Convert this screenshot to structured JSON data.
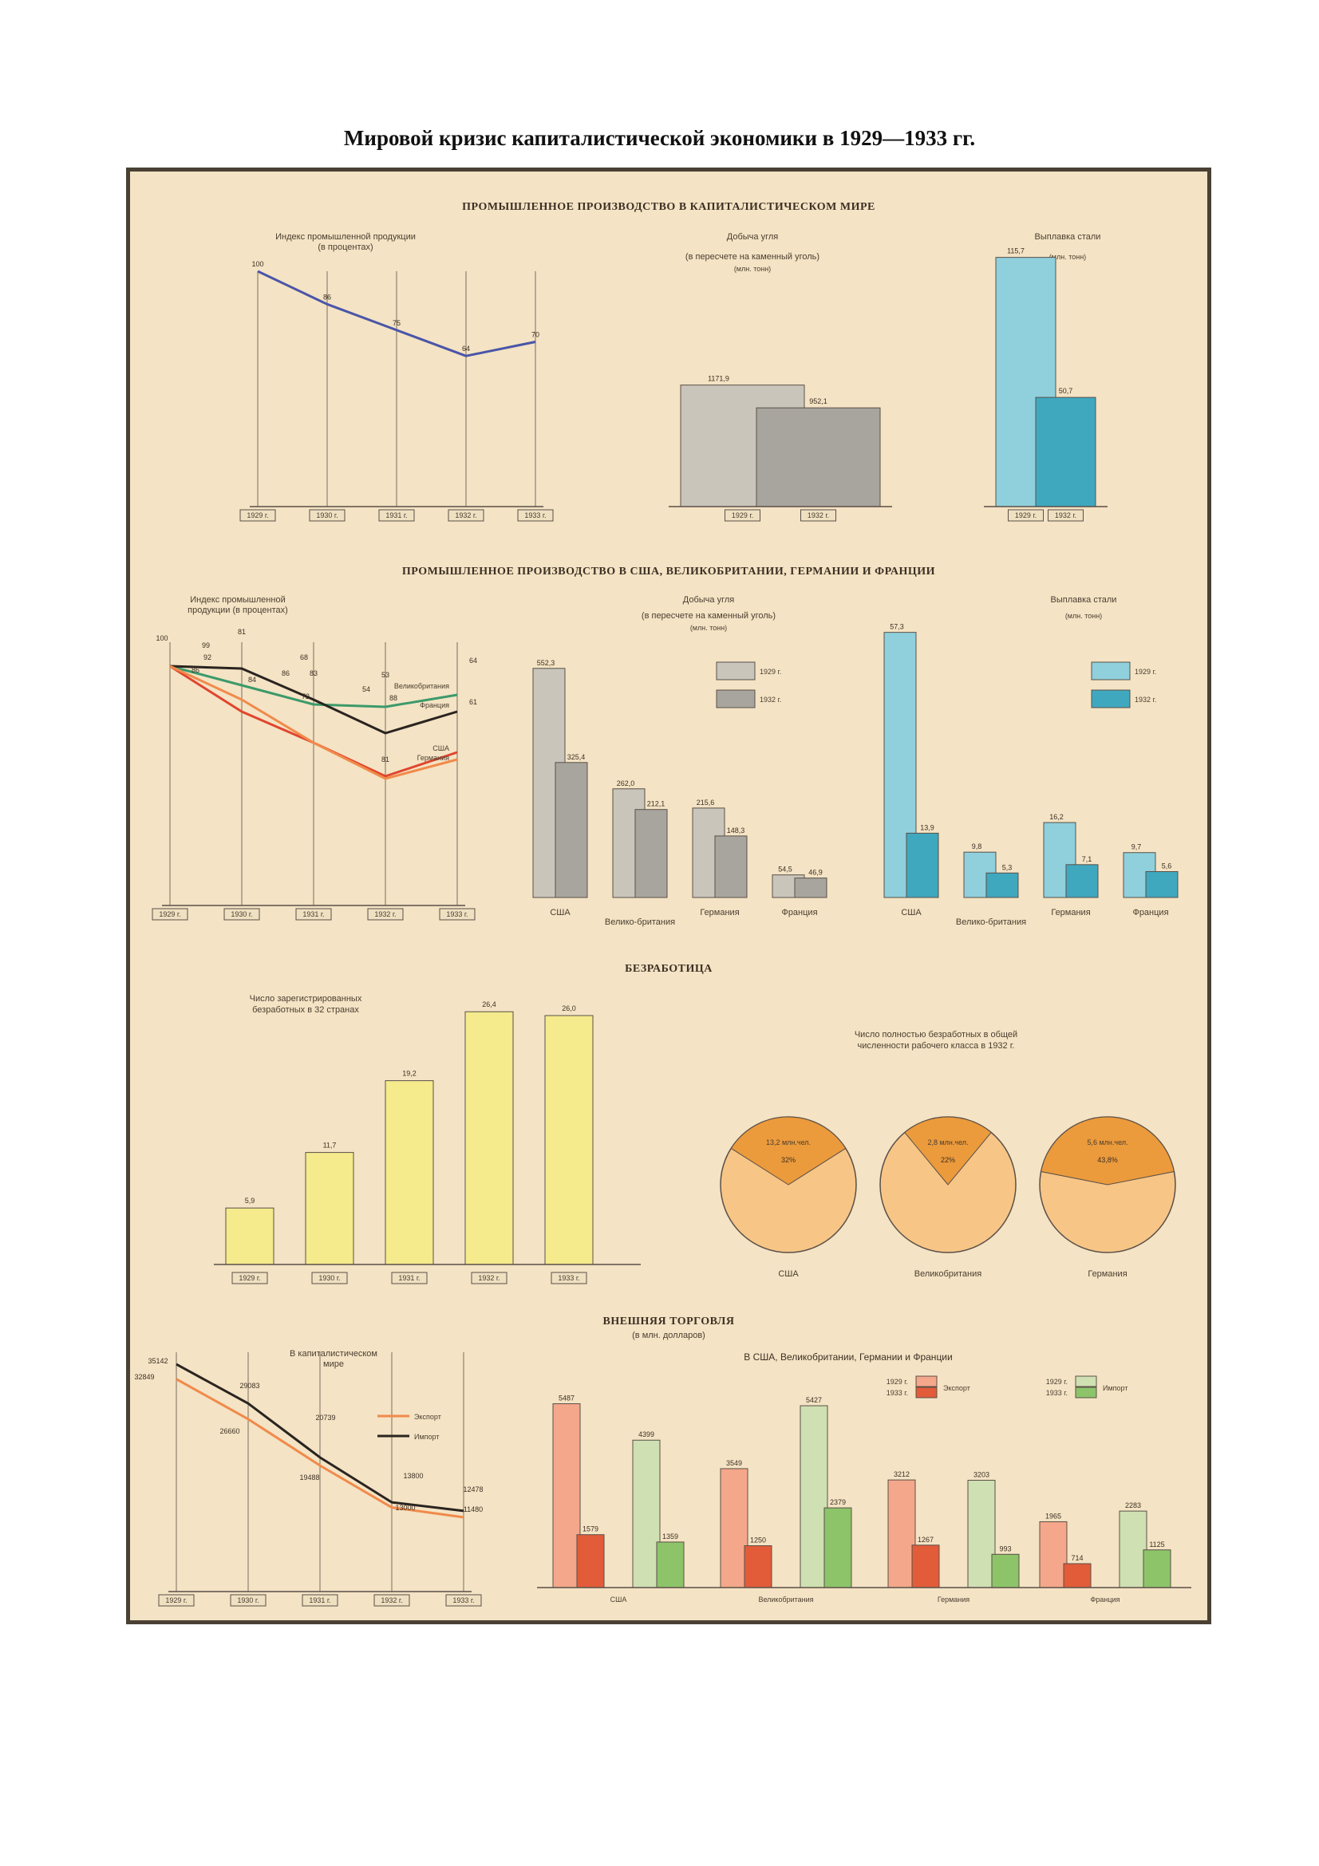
{
  "document": {
    "title": "Мировой кризис капиталистической экономики в 1929—1933 гг."
  },
  "sections": {
    "world": "ПРОМЫШЛЕННОЕ ПРОИЗВОДСТВО В КАПИТАЛИСТИЧЕСКОМ МИРЕ",
    "countries": "ПРОМЫШЛЕННОЕ ПРОИЗВОДСТВО В США, ВЕЛИКОБРИТАНИИ, ГЕРМАНИИ И ФРАНЦИИ",
    "unemployment": "БЕЗРАБОТИЦА",
    "trade": "ВНЕШНЯЯ ТОРГОВЛЯ",
    "trade_unit": "(в млн. долларов)"
  },
  "colors": {
    "paper": "#f4e3c4",
    "frame": "#4a4034",
    "blue_line": "#4a55a8",
    "gray_light": "#c9c5bb",
    "gray_dark": "#a8a59e",
    "teal_light": "#8fd0dc",
    "teal_dark": "#3fa8bf",
    "yellow": "#f5ea8c",
    "orange_light": "#f7c586",
    "orange_dark": "#eb9a3c",
    "export_light": "#f4a78a",
    "export_dark": "#e25c3a",
    "import_light": "#cfe0b2",
    "import_dark": "#8dc46a",
    "line_black": "#2a2420",
    "line_green": "#3b9a6a",
    "line_red": "#e0452e",
    "line_orange": "#f08a4b"
  },
  "chart_data": [
    {
      "id": "world-index",
      "type": "line",
      "title": "Индекс промышленной продукции (в процентах)",
      "categories": [
        "1929 г.",
        "1930 г.",
        "1931 г.",
        "1932 г.",
        "1933 г."
      ],
      "series": [
        {
          "values": [
            100,
            86,
            75,
            64,
            70
          ]
        }
      ],
      "value_labels": [
        "100",
        "86",
        "75",
        "64",
        "70"
      ],
      "ylim": [
        0,
        100
      ]
    },
    {
      "id": "world-coal",
      "type": "bar",
      "title": "Добыча угля",
      "subtitle": "(в пересчете на каменный уголь)",
      "unit": "(млн. тонн)",
      "categories": [
        "1929 г.",
        "1932 г."
      ],
      "values": [
        1171.9,
        952.1
      ],
      "value_labels": [
        "1171,9",
        "952,1"
      ]
    },
    {
      "id": "world-steel",
      "type": "bar",
      "title": "Выплавка стали",
      "unit": "(млн. тонн)",
      "categories": [
        "1929 г.",
        "1932 г."
      ],
      "values": [
        115.7,
        50.7
      ],
      "value_labels": [
        "115,7",
        "50,7"
      ]
    },
    {
      "id": "countries-index",
      "type": "line",
      "title": "Индекс промышленной продукции (в процентах)",
      "categories": [
        "1929 г.",
        "1930 г.",
        "1931 г.",
        "1932 г.",
        "1933 г."
      ],
      "series": [
        {
          "name": "Великобритания",
          "values": [
            100,
            92,
            84,
            83,
            88
          ]
        },
        {
          "name": "Франция",
          "values": [
            100,
            99,
            86,
            72,
            81
          ]
        },
        {
          "name": "США",
          "values": [
            100,
            81,
            68,
            54,
            64
          ]
        },
        {
          "name": "Германия",
          "values": [
            100,
            86,
            68,
            53,
            61
          ]
        }
      ],
      "value_labels": [
        "100",
        "99",
        "92",
        "86",
        "81",
        "84",
        "86",
        "68",
        "83",
        "72",
        "53",
        "54",
        "88",
        "81",
        "64",
        "61"
      ],
      "ylim": [
        0,
        100
      ]
    },
    {
      "id": "countries-coal",
      "type": "bar",
      "title": "Добыча угля",
      "subtitle": "(в пересчете на каменный уголь)",
      "unit": "(млн. тонн)",
      "categories": [
        "США",
        "Велико-британия",
        "Германия",
        "Франция"
      ],
      "series": [
        {
          "name": "1929 г.",
          "values": [
            552.3,
            262.0,
            215.6,
            54.5
          ]
        },
        {
          "name": "1932 г.",
          "values": [
            325.4,
            212.1,
            148.3,
            46.9
          ]
        }
      ],
      "value_labels": [
        [
          "552,3",
          "262,0",
          "215,6",
          "54,5"
        ],
        [
          "325,4",
          "212,1",
          "148,3",
          "46,9"
        ]
      ]
    },
    {
      "id": "countries-steel",
      "type": "bar",
      "title": "Выплавка стали",
      "unit": "(млн. тонн)",
      "categories": [
        "США",
        "Велико-британия",
        "Германия",
        "Франция"
      ],
      "series": [
        {
          "name": "1929 г.",
          "values": [
            57.3,
            9.8,
            16.2,
            9.7
          ]
        },
        {
          "name": "1932 г.",
          "values": [
            13.9,
            5.3,
            7.1,
            5.6
          ]
        }
      ],
      "value_labels": [
        [
          "57,3",
          "9,8",
          "16,2",
          "9,7"
        ],
        [
          "13,9",
          "5,3",
          "7,1",
          "5,6"
        ]
      ]
    },
    {
      "id": "unemployed",
      "type": "bar",
      "title": "Число зарегистрированных безработных в 32 странах",
      "categories": [
        "1929 г.",
        "1930 г.",
        "1931 г.",
        "1932 г.",
        "1933 г."
      ],
      "values": [
        5.9,
        11.7,
        19.2,
        26.4,
        26.0
      ],
      "value_labels": [
        "5,9",
        "11,7",
        "19,2",
        "26,4",
        "26,0"
      ]
    },
    {
      "id": "unemployed-share",
      "type": "pie",
      "title": "Число полностью безработных в общей численности рабочего класса в 1932 г.",
      "slices": [
        {
          "label": "США",
          "value": 32,
          "abs_label": "13,2 млн.чел.",
          "pct_label": "32%"
        },
        {
          "label": "Великобритания",
          "value": 22,
          "abs_label": "2,8 млн.чел.",
          "pct_label": "22%"
        },
        {
          "label": "Германия",
          "value": 43.8,
          "abs_label": "5,6 млн.чел.",
          "pct_label": "43,8%"
        }
      ]
    },
    {
      "id": "world-trade",
      "type": "line",
      "title": "В капиталистическом мире",
      "categories": [
        "1929 г.",
        "1930 г.",
        "1931 г.",
        "1932 г.",
        "1933 г."
      ],
      "series": [
        {
          "name": "Импорт",
          "values": [
            35142,
            29083,
            20739,
            13800,
            12478
          ]
        },
        {
          "name": "Экспорт",
          "values": [
            32849,
            26660,
            19488,
            13000,
            11480
          ]
        }
      ],
      "value_labels": [
        "35142",
        "32849",
        "29083",
        "26660",
        "20739",
        "19488",
        "13800",
        "13000",
        "12478",
        "11480"
      ]
    },
    {
      "id": "countries-trade",
      "type": "bar",
      "title": "В США, Великобритании, Германии и Франции",
      "categories": [
        "США",
        "Великобритания",
        "Германия",
        "Франция"
      ],
      "legend": [
        {
          "label": "Экспорт",
          "years": [
            "1929 г.",
            "1933 г."
          ]
        },
        {
          "label": "Импорт",
          "years": [
            "1929 г.",
            "1933 г."
          ]
        }
      ],
      "series": [
        {
          "name": "Экспорт 1929 г.",
          "values": [
            5487,
            3549,
            3212,
            1965
          ]
        },
        {
          "name": "Экспорт 1933 г.",
          "values": [
            1579,
            1250,
            1267,
            714
          ]
        },
        {
          "name": "Импорт 1929 г.",
          "values": [
            4399,
            5427,
            3203,
            2283
          ]
        },
        {
          "name": "Импорт 1933 г.",
          "values": [
            1359,
            2379,
            993,
            1125
          ]
        }
      ],
      "value_labels": [
        [
          "5487",
          "3549",
          "3212",
          "1965"
        ],
        [
          "1579",
          "1250",
          "1267",
          "714"
        ],
        [
          "4399",
          "5427",
          "3203",
          "2283"
        ],
        [
          "1359",
          "2379",
          "993",
          "1125"
        ]
      ]
    }
  ]
}
